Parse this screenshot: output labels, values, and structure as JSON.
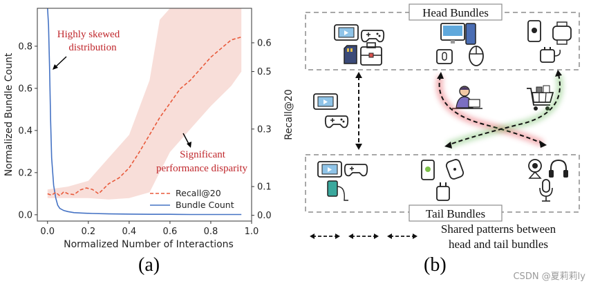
{
  "chart_data": {
    "type": "line",
    "xlabel": "Normalized Number of Interactions",
    "ylabel_left": "Normalized Bundle Count",
    "ylabel_right": "Recall@20",
    "xlim": [
      -0.05,
      1.0
    ],
    "ylim_left": [
      -0.03,
      0.98
    ],
    "ylim_right": [
      -0.02,
      0.72
    ],
    "x_ticks": [
      "0.0",
      "0.2",
      "0.4",
      "0.6",
      "0.8",
      "1.0"
    ],
    "x_tick_values": [
      0.0,
      0.2,
      0.4,
      0.6,
      0.8,
      1.0
    ],
    "y_left_ticks": [
      "0.0",
      "0.2",
      "0.4",
      "0.6",
      "0.8"
    ],
    "y_left_tick_values": [
      0.0,
      0.2,
      0.4,
      0.6,
      0.8
    ],
    "y_right_ticks": [
      "0.0",
      "0.1",
      "0.3",
      "0.5",
      "0.6"
    ],
    "y_right_tick_values": [
      0.0,
      0.1,
      0.3,
      0.5,
      0.6
    ],
    "legend": [
      "Recall@20",
      "Bundle Count"
    ],
    "legend_position": "lower-right",
    "series": [
      {
        "name": "Bundle Count",
        "axis": "left",
        "color": "#4472c4",
        "x": [
          0.0,
          0.005,
          0.01,
          0.015,
          0.02,
          0.03,
          0.04,
          0.05,
          0.06,
          0.08,
          0.1,
          0.13,
          0.17,
          0.22,
          0.3,
          0.4,
          0.5,
          0.6,
          0.7,
          0.8,
          0.9,
          0.95
        ],
        "values": [
          0.98,
          0.9,
          0.7,
          0.45,
          0.27,
          0.14,
          0.08,
          0.045,
          0.03,
          0.02,
          0.015,
          0.01,
          0.008,
          0.006,
          0.004,
          0.003,
          0.002,
          0.002,
          0.001,
          0.001,
          0.001,
          0.001
        ]
      },
      {
        "name": "Recall@20",
        "axis": "right",
        "color": "#e8593a",
        "x": [
          0.0,
          0.02,
          0.04,
          0.06,
          0.08,
          0.1,
          0.13,
          0.16,
          0.19,
          0.22,
          0.25,
          0.3,
          0.35,
          0.4,
          0.45,
          0.5,
          0.55,
          0.6,
          0.65,
          0.7,
          0.75,
          0.8,
          0.85,
          0.9,
          0.95
        ],
        "values": [
          0.075,
          0.07,
          0.08,
          0.068,
          0.082,
          0.075,
          0.072,
          0.088,
          0.095,
          0.09,
          0.075,
          0.11,
          0.13,
          0.165,
          0.22,
          0.28,
          0.34,
          0.39,
          0.44,
          0.47,
          0.51,
          0.55,
          0.58,
          0.61,
          0.62
        ]
      }
    ],
    "band": {
      "series": "Recall@20",
      "color": "#f6d3cc",
      "x": [
        0.0,
        0.1,
        0.2,
        0.3,
        0.4,
        0.5,
        0.55,
        0.6,
        0.7,
        0.8,
        0.9,
        0.95
      ],
      "upper": [
        0.09,
        0.1,
        0.12,
        0.2,
        0.28,
        0.47,
        0.68,
        0.72,
        0.72,
        0.72,
        0.72,
        0.72
      ],
      "lower": [
        0.06,
        0.06,
        0.06,
        0.055,
        0.06,
        0.08,
        0.15,
        0.22,
        0.3,
        0.38,
        0.45,
        0.5
      ]
    },
    "annotations": [
      {
        "text_lines": [
          "Highly skewed",
          "distribution"
        ],
        "color": "#c0282d"
      },
      {
        "text_lines": [
          "Significant",
          "performance disparity"
        ],
        "color": "#c0282d"
      }
    ]
  },
  "diagram": {
    "head_title": "Head Bundles",
    "tail_title": "Tail Bundles",
    "legend_text_line1": "Shared patterns between",
    "legend_text_line2": "head and tail bundles",
    "arrow_colors": {
      "blue": "#2d5be3",
      "red": "#e0303a",
      "green": "#56b047"
    }
  },
  "captions": {
    "left": "(a)",
    "right": "(b)"
  },
  "watermark": "CSDN @夏莉莉ly"
}
